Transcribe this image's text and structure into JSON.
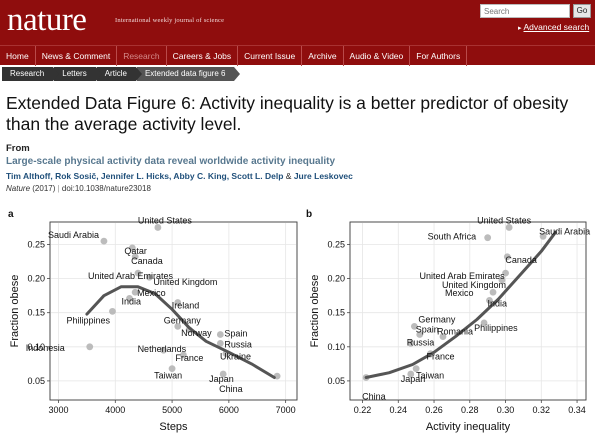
{
  "header": {
    "logo": "nature",
    "tagline": "International weekly journal of science",
    "search_placeholder": "Search",
    "go_label": "Go",
    "advanced_search": "Advanced search"
  },
  "nav": {
    "items": [
      {
        "label": "Home",
        "active": false
      },
      {
        "label": "News & Comment",
        "active": false
      },
      {
        "label": "Research",
        "active": true
      },
      {
        "label": "Careers & Jobs",
        "active": false
      },
      {
        "label": "Current Issue",
        "active": false
      },
      {
        "label": "Archive",
        "active": false
      },
      {
        "label": "Audio & Video",
        "active": false
      },
      {
        "label": "For Authors",
        "active": false
      }
    ]
  },
  "breadcrumbs": [
    "Research",
    "Letters",
    "Article",
    "Extended data figure 6"
  ],
  "page": {
    "title": "Extended Data Figure 6: Activity inequality is a better predictor of obesity than the average activity level.",
    "from_label": "From",
    "article_title": "Large-scale physical activity data reveal worldwide activity inequality",
    "authors": "Tim Althoff, Rok Sosič, Jennifer L. Hicks, Abby C. King, Scott L. Delp",
    "authors_amp": "&",
    "last_author": "Jure Leskovec",
    "journal": "Nature",
    "year": "(2017)",
    "separator": "|",
    "doi": "doi:10.1038/nature23018"
  },
  "colors": {
    "header_bg": "#8f0d0d",
    "crumb_bg": "#333333",
    "article_title": "#58788f",
    "author_link": "#1f4f7a",
    "point": "#b5b5b5",
    "curve": "#555555"
  },
  "chart_data": [
    {
      "type": "scatter",
      "panel": "a",
      "xlabel": "Steps",
      "ylabel": "Fraction obese",
      "xlim": [
        2850,
        7200
      ],
      "ylim": [
        0.022,
        0.283
      ],
      "xticks": [
        3000,
        4000,
        5000,
        6000,
        7000
      ],
      "yticks": [
        0.05,
        0.1,
        0.15,
        0.2,
        0.25
      ],
      "ytick_labels": [
        "0.05",
        "0.10",
        "0.15",
        "0.20",
        "0.25"
      ],
      "grid": true,
      "points": [
        {
          "label": "United States",
          "x": 4750,
          "y": 0.275
        },
        {
          "label": "Saudi Arabia",
          "x": 3800,
          "y": 0.255
        },
        {
          "label": "Qatar",
          "x": 4300,
          "y": 0.245
        },
        {
          "label": "Canada",
          "x": 4350,
          "y": 0.232
        },
        {
          "label": "United Arab Emirates",
          "x": 4400,
          "y": 0.208
        },
        {
          "label": "United Kingdom",
          "x": 4600,
          "y": 0.202
        },
        {
          "label": "Mexico",
          "x": 4350,
          "y": 0.18
        },
        {
          "label": "India",
          "x": 4250,
          "y": 0.171
        },
        {
          "label": "Ireland",
          "x": 5100,
          "y": 0.165
        },
        {
          "label": "Philippines",
          "x": 3950,
          "y": 0.152
        },
        {
          "label": "Germany",
          "x": 5100,
          "y": 0.13
        },
        {
          "label": "Norway",
          "x": 5300,
          "y": 0.125
        },
        {
          "label": "Indonesia",
          "x": 3550,
          "y": 0.1
        },
        {
          "label": "Spain",
          "x": 5850,
          "y": 0.118
        },
        {
          "label": "Russia",
          "x": 5850,
          "y": 0.105
        },
        {
          "label": "Netherlands",
          "x": 4850,
          "y": 0.095
        },
        {
          "label": "France",
          "x": 5200,
          "y": 0.088
        },
        {
          "label": "Ukraine",
          "x": 5950,
          "y": 0.09
        },
        {
          "label": "Taiwan",
          "x": 5000,
          "y": 0.068
        },
        {
          "label": "Japan",
          "x": 5900,
          "y": 0.06
        },
        {
          "label": "China",
          "x": 6850,
          "y": 0.057
        }
      ],
      "curve": [
        [
          3500,
          0.148
        ],
        [
          3800,
          0.175
        ],
        [
          4100,
          0.188
        ],
        [
          4400,
          0.188
        ],
        [
          4700,
          0.178
        ],
        [
          5000,
          0.155
        ],
        [
          5300,
          0.128
        ],
        [
          5600,
          0.108
        ],
        [
          6000,
          0.092
        ],
        [
          6400,
          0.075
        ],
        [
          6800,
          0.055
        ]
      ]
    },
    {
      "type": "scatter",
      "panel": "b",
      "xlabel": "Activity inequality",
      "ylabel": "Fraction obese",
      "xlim": [
        0.213,
        0.345
      ],
      "ylim": [
        0.022,
        0.283
      ],
      "xticks": [
        0.22,
        0.24,
        0.26,
        0.28,
        0.3,
        0.32,
        0.34
      ],
      "xtick_labels": [
        "0.22",
        "0.24",
        "0.26",
        "0.28",
        "0.30",
        "0.32",
        "0.34"
      ],
      "yticks": [
        0.05,
        0.1,
        0.15,
        0.2,
        0.25
      ],
      "ytick_labels": [
        "0.05",
        "0.10",
        "0.15",
        "0.20",
        "0.25"
      ],
      "grid": true,
      "points": [
        {
          "label": "United States",
          "x": 0.302,
          "y": 0.275
        },
        {
          "label": "Saudi Arabia",
          "x": 0.321,
          "y": 0.262
        },
        {
          "label": "South Africa",
          "x": 0.29,
          "y": 0.26
        },
        {
          "label": "Canada",
          "x": 0.301,
          "y": 0.232
        },
        {
          "label": "United Arab Emirates",
          "x": 0.3,
          "y": 0.208
        },
        {
          "label": "United Kingdom",
          "x": 0.298,
          "y": 0.198
        },
        {
          "label": "Mexico",
          "x": 0.293,
          "y": 0.18
        },
        {
          "label": "India",
          "x": 0.291,
          "y": 0.168
        },
        {
          "label": "Germany",
          "x": 0.249,
          "y": 0.13
        },
        {
          "label": "Philippines",
          "x": 0.288,
          "y": 0.135
        },
        {
          "label": "Spain",
          "x": 0.252,
          "y": 0.118
        },
        {
          "label": "Romania",
          "x": 0.265,
          "y": 0.115
        },
        {
          "label": "Russia",
          "x": 0.247,
          "y": 0.105
        },
        {
          "label": "France",
          "x": 0.258,
          "y": 0.09
        },
        {
          "label": "Taiwan",
          "x": 0.25,
          "y": 0.068
        },
        {
          "label": "Japan",
          "x": 0.247,
          "y": 0.06
        },
        {
          "label": "China",
          "x": 0.222,
          "y": 0.055
        }
      ],
      "curve": [
        [
          0.222,
          0.055
        ],
        [
          0.235,
          0.062
        ],
        [
          0.248,
          0.074
        ],
        [
          0.26,
          0.092
        ],
        [
          0.272,
          0.115
        ],
        [
          0.284,
          0.14
        ],
        [
          0.296,
          0.17
        ],
        [
          0.308,
          0.205
        ],
        [
          0.32,
          0.24
        ],
        [
          0.328,
          0.268
        ]
      ]
    }
  ]
}
